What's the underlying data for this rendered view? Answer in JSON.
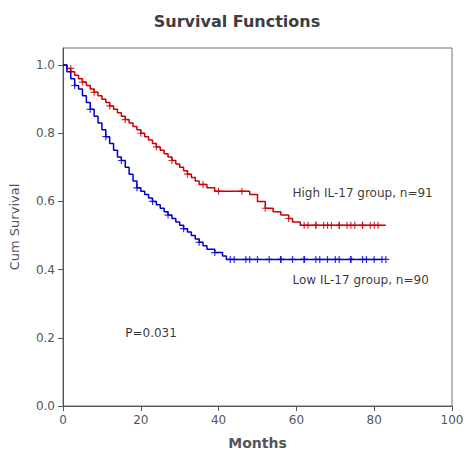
{
  "chart_data": {
    "type": "line",
    "title": "Survival Functions",
    "x_label": "Months",
    "y_label": "Cum Survival",
    "xlim": [
      0,
      100
    ],
    "ylim": [
      0.0,
      1.05
    ],
    "xticks": [
      0,
      20,
      40,
      60,
      80,
      100
    ],
    "yticks": [
      {
        "value": 0.0,
        "label": "0.0"
      },
      {
        "value": 0.2,
        "label": "0.2"
      },
      {
        "value": 0.4,
        "label": "0.4"
      },
      {
        "value": 0.6,
        "label": "0.6"
      },
      {
        "value": 0.8,
        "label": "0.8"
      },
      {
        "value": 1.0,
        "label": "1.0"
      }
    ],
    "grid": false,
    "annotations": [
      {
        "text": "High IL-17 group, n=91",
        "x": 59,
        "y": 0.625
      },
      {
        "text": "Low IL-17 group, n=90",
        "x": 59,
        "y": 0.37
      },
      {
        "text": "P=0.031",
        "x": 16,
        "y": 0.215
      }
    ],
    "series": [
      {
        "type": "step",
        "color": "#CC0000",
        "x": [
          0,
          0.5,
          1,
          1.5,
          2,
          3,
          4,
          5,
          6,
          7,
          8,
          9,
          10,
          11,
          12,
          13,
          14,
          15,
          16,
          17,
          18,
          19,
          20,
          21,
          22,
          23,
          24,
          25,
          26,
          27,
          28,
          29,
          30,
          31,
          32,
          33,
          34,
          35,
          36,
          37,
          38,
          39,
          40,
          42,
          44,
          46,
          47,
          48,
          50,
          52,
          54,
          56,
          57,
          58,
          59,
          60,
          61,
          62,
          63,
          65,
          67,
          69,
          71,
          73,
          75,
          77,
          79,
          81,
          83
        ],
        "values": [
          1.0,
          1.0,
          0.99,
          0.99,
          0.98,
          0.97,
          0.96,
          0.95,
          0.94,
          0.93,
          0.92,
          0.91,
          0.9,
          0.89,
          0.88,
          0.87,
          0.86,
          0.85,
          0.84,
          0.83,
          0.82,
          0.81,
          0.8,
          0.79,
          0.78,
          0.77,
          0.76,
          0.75,
          0.74,
          0.73,
          0.72,
          0.71,
          0.7,
          0.69,
          0.68,
          0.67,
          0.66,
          0.65,
          0.65,
          0.64,
          0.64,
          0.63,
          0.63,
          0.63,
          0.63,
          0.63,
          0.63,
          0.62,
          0.6,
          0.58,
          0.57,
          0.56,
          0.56,
          0.55,
          0.54,
          0.54,
          0.53,
          0.53,
          0.53,
          0.53,
          0.53,
          0.53,
          0.53,
          0.53,
          0.53,
          0.53,
          0.53,
          0.53,
          0.53
        ]
      },
      {
        "type": "step",
        "color": "#0000CC",
        "x": [
          0,
          1,
          2,
          3,
          4,
          5,
          6,
          7,
          8,
          9,
          10,
          11,
          12,
          13,
          14,
          15,
          16,
          17,
          18,
          19,
          20,
          21,
          22,
          23,
          24,
          25,
          26,
          27,
          28,
          29,
          30,
          31,
          32,
          33,
          34,
          35,
          36,
          37,
          38,
          39,
          40,
          41,
          42,
          43,
          44,
          46,
          48,
          50,
          52,
          54,
          56,
          58,
          60,
          62,
          64,
          66,
          68,
          70,
          72,
          74,
          76,
          78,
          80,
          82
        ],
        "values": [
          1.0,
          0.98,
          0.96,
          0.94,
          0.93,
          0.91,
          0.89,
          0.87,
          0.85,
          0.83,
          0.81,
          0.79,
          0.77,
          0.75,
          0.73,
          0.72,
          0.7,
          0.68,
          0.66,
          0.64,
          0.63,
          0.62,
          0.61,
          0.6,
          0.59,
          0.58,
          0.57,
          0.56,
          0.55,
          0.54,
          0.53,
          0.52,
          0.51,
          0.5,
          0.49,
          0.48,
          0.47,
          0.46,
          0.46,
          0.45,
          0.45,
          0.44,
          0.43,
          0.43,
          0.43,
          0.43,
          0.43,
          0.43,
          0.43,
          0.43,
          0.43,
          0.43,
          0.43,
          0.43,
          0.43,
          0.43,
          0.43,
          0.43,
          0.43,
          0.43,
          0.43,
          0.43,
          0.43,
          0.43
        ]
      },
      {
        "type": "scatter",
        "marker": "plus",
        "color": "#CC0000",
        "x": [
          2,
          5,
          8,
          12,
          16,
          20,
          24,
          28,
          32,
          36,
          40,
          46,
          52,
          58,
          62,
          65,
          68,
          71,
          74,
          77,
          80
        ],
        "values": [
          0.99,
          0.95,
          0.92,
          0.88,
          0.84,
          0.8,
          0.76,
          0.72,
          0.68,
          0.65,
          0.63,
          0.63,
          0.58,
          0.55,
          0.53,
          0.53,
          0.53,
          0.53,
          0.53,
          0.53,
          0.53
        ]
      },
      {
        "type": "scatter",
        "marker": "plus",
        "color": "#CC0000",
        "x": [
          63,
          65,
          67,
          69,
          71,
          73,
          75,
          77,
          79,
          81
        ],
        "values": [
          0.53,
          0.53,
          0.53,
          0.53,
          0.53,
          0.53,
          0.53,
          0.53,
          0.53,
          0.53
        ]
      },
      {
        "type": "scatter",
        "marker": "plus",
        "color": "#0000CC",
        "x": [
          3,
          7,
          11,
          15,
          19,
          23,
          27,
          31,
          35,
          39,
          43,
          48,
          56,
          62,
          66,
          70,
          74,
          78,
          82
        ],
        "values": [
          0.94,
          0.87,
          0.79,
          0.72,
          0.64,
          0.6,
          0.56,
          0.52,
          0.48,
          0.45,
          0.43,
          0.43,
          0.43,
          0.43,
          0.43,
          0.43,
          0.43,
          0.43,
          0.43
        ]
      },
      {
        "type": "scatter",
        "marker": "plus",
        "color": "#0000CC",
        "x": [
          44,
          47,
          50,
          53,
          56,
          59,
          62,
          65,
          68,
          71,
          74,
          77,
          80,
          83
        ],
        "values": [
          0.43,
          0.43,
          0.43,
          0.43,
          0.43,
          0.43,
          0.43,
          0.43,
          0.43,
          0.43,
          0.43,
          0.43,
          0.43,
          0.43
        ]
      }
    ]
  }
}
